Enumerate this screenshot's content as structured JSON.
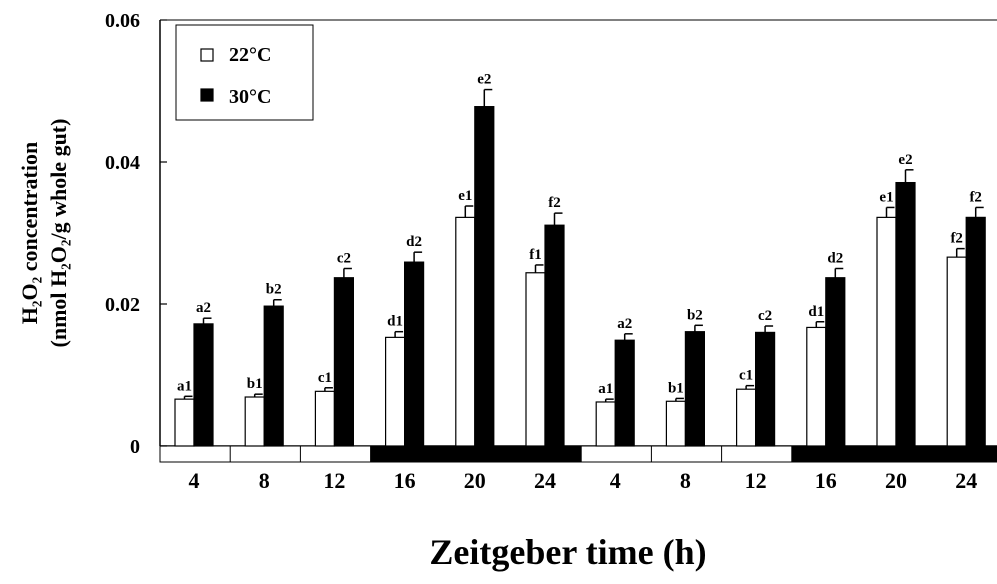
{
  "chart_data": {
    "type": "bar",
    "ylabel_line1": "H₂O₂ concentration",
    "ylabel_line2": "(nmol H₂O₂/g whole gut)",
    "xlabel": "Zeitgeber time (h)",
    "ylim": [
      0,
      0.06
    ],
    "yticks": [
      {
        "value": 0,
        "label": "0"
      },
      {
        "value": 0.02,
        "label": "0.02"
      },
      {
        "value": 0.04,
        "label": "0.04"
      },
      {
        "value": 0.06,
        "label": "0.06"
      }
    ],
    "categories": [
      "4",
      "8",
      "12",
      "16",
      "20",
      "24",
      "4",
      "8",
      "12",
      "16",
      "20",
      "24"
    ],
    "light_dark_bar": [
      "light",
      "light",
      "light",
      "dark",
      "dark",
      "dark",
      "light",
      "light",
      "light",
      "dark",
      "dark",
      "dark"
    ],
    "legend_position": "top-left",
    "series": [
      {
        "name": "22°C",
        "fill": "#ffffff",
        "values": [
          0.0066,
          0.0069,
          0.0077,
          0.0153,
          0.0322,
          0.0244,
          0.0062,
          0.0063,
          0.008,
          0.0167,
          0.0322,
          0.0266
        ],
        "errors": [
          0.0004,
          0.0004,
          0.0005,
          0.0008,
          0.0016,
          0.0011,
          0.0004,
          0.0004,
          0.0005,
          0.0008,
          0.0014,
          0.0012
        ],
        "labels": [
          "a1",
          "b1",
          "c1",
          "d1",
          "e1",
          "f1",
          "a1",
          "b1",
          "c1",
          "d1",
          "e1",
          "f2"
        ]
      },
      {
        "name": "30°C",
        "fill": "#000000",
        "values": [
          0.0172,
          0.0197,
          0.0237,
          0.0259,
          0.0478,
          0.0311,
          0.0149,
          0.0161,
          0.016,
          0.0237,
          0.0371,
          0.0322
        ],
        "errors": [
          0.0008,
          0.0009,
          0.0013,
          0.0014,
          0.0024,
          0.0017,
          0.0009,
          0.0009,
          0.0009,
          0.0013,
          0.0018,
          0.0014
        ],
        "labels": [
          "a2",
          "b2",
          "c2",
          "d2",
          "e2",
          "f2",
          "a2",
          "b2",
          "c2",
          "d2",
          "e2",
          "f2"
        ]
      }
    ]
  }
}
